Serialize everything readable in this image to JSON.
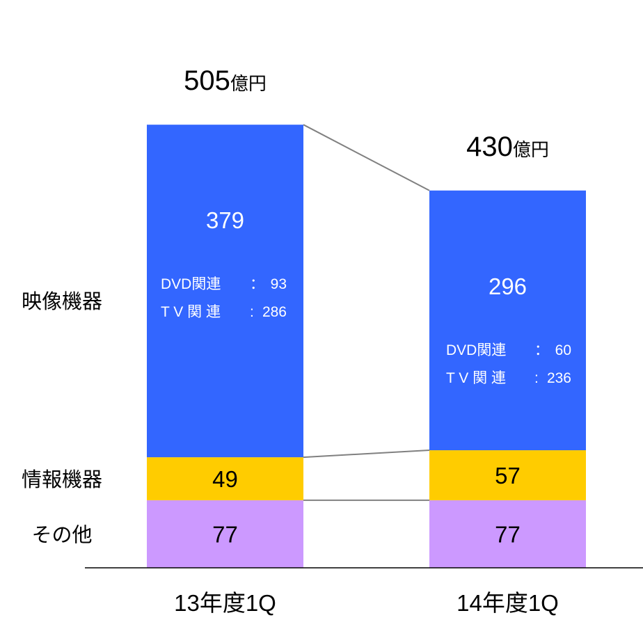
{
  "chart_data": {
    "type": "bar",
    "stacked": true,
    "categories": [
      "13年度1Q",
      "14年度1Q"
    ],
    "series": [
      {
        "name": "その他",
        "values": [
          77,
          77
        ],
        "color": "#CC99FF"
      },
      {
        "name": "情報機器",
        "values": [
          49,
          57
        ],
        "color": "#FFCC00"
      },
      {
        "name": "映像機器",
        "values": [
          379,
          296
        ],
        "color": "#3366FF"
      }
    ],
    "totals": [
      {
        "value": "505",
        "unit": "億円"
      },
      {
        "value": "430",
        "unit": "億円"
      }
    ],
    "breakdown": [
      [
        {
          "label": "DVD関連",
          "sep": "：",
          "value": "93"
        },
        {
          "label": "T V 関 連",
          "sep": ":",
          "value": "286"
        }
      ],
      [
        {
          "label": "DVD関連",
          "sep": "：",
          "value": "60"
        },
        {
          "label": "T V 関 連",
          "sep": ":",
          "value": "236"
        }
      ]
    ],
    "title": "",
    "xlabel": "",
    "ylabel": "",
    "grid": false,
    "legend": "left"
  }
}
